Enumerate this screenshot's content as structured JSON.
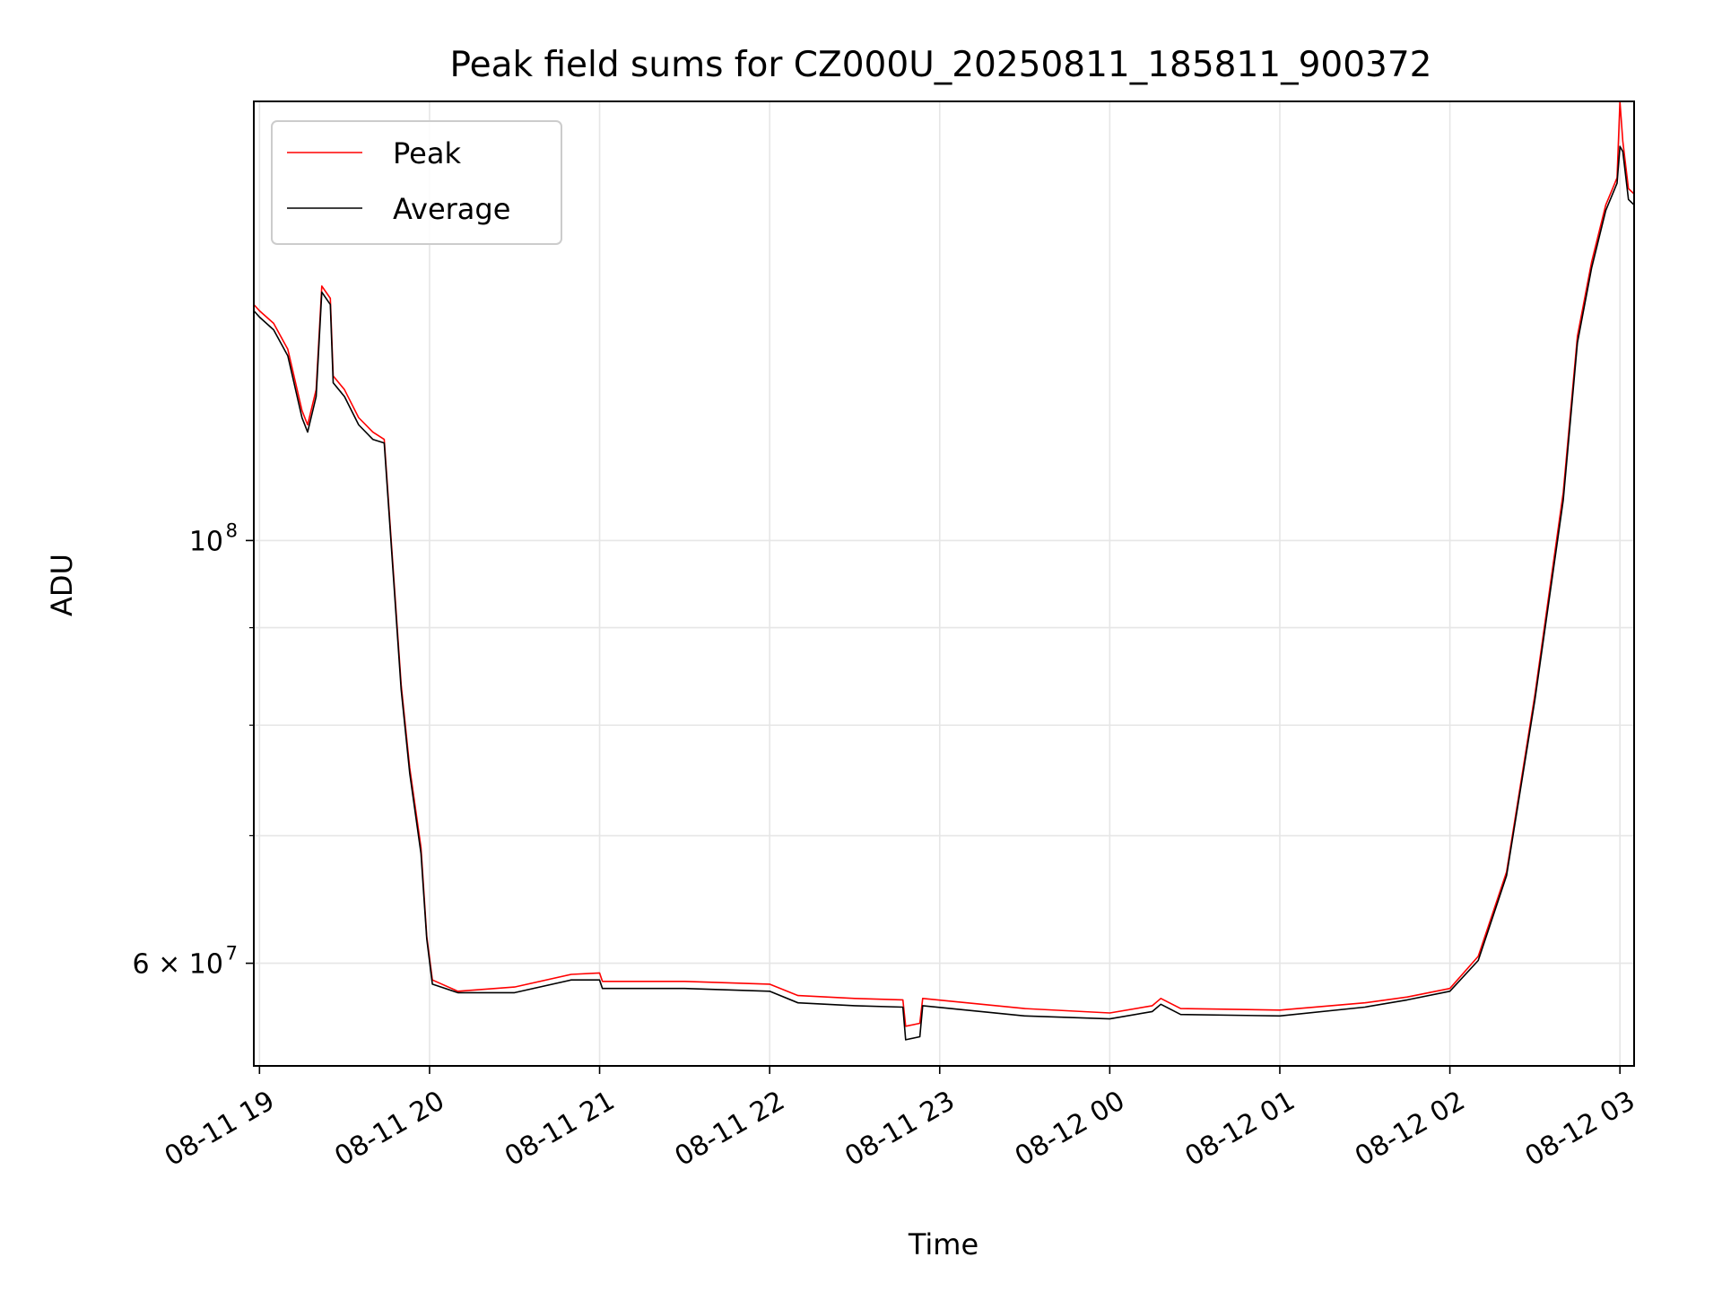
{
  "chart_data": {
    "type": "line",
    "title": "Peak field sums for CZ000U_20250811_185811_900372",
    "xlabel": "Time",
    "ylabel": "ADU",
    "y_scale": "log",
    "ylim": [
      53000000,
      170000000
    ],
    "xlim": [
      "2025-08-11 18:58",
      "2025-08-12 03:05"
    ],
    "grid": true,
    "legend": "upper left",
    "x_ticks": [
      {
        "t": "2025-08-11 19:00",
        "label": "08-11 19"
      },
      {
        "t": "2025-08-11 20:00",
        "label": "08-11 20"
      },
      {
        "t": "2025-08-11 21:00",
        "label": "08-11 21"
      },
      {
        "t": "2025-08-11 22:00",
        "label": "08-11 22"
      },
      {
        "t": "2025-08-11 23:00",
        "label": "08-11 23"
      },
      {
        "t": "2025-08-12 00:00",
        "label": "08-12 00"
      },
      {
        "t": "2025-08-12 01:00",
        "label": "08-12 01"
      },
      {
        "t": "2025-08-12 02:00",
        "label": "08-12 02"
      },
      {
        "t": "2025-08-12 03:00",
        "label": "08-12 03"
      }
    ],
    "y_ticks": [
      {
        "value": 100000000,
        "base": "10",
        "exp": "8"
      },
      {
        "value": 60000000,
        "base": "6 × 10",
        "exp": "7"
      }
    ],
    "y_minor_ticks": [
      70000000,
      80000000,
      90000000
    ],
    "series": [
      {
        "name": "Peak",
        "color": "#ff0000",
        "points": [
          [
            "2025-08-11 18:58",
            133000000
          ],
          [
            "2025-08-11 19:00",
            132000000
          ],
          [
            "2025-08-11 19:05",
            130000000
          ],
          [
            "2025-08-11 19:10",
            126000000
          ],
          [
            "2025-08-11 19:15",
            117000000
          ],
          [
            "2025-08-11 19:17",
            115000000
          ],
          [
            "2025-08-11 19:20",
            120000000
          ],
          [
            "2025-08-11 19:22",
            136000000
          ],
          [
            "2025-08-11 19:25",
            134000000
          ],
          [
            "2025-08-11 19:26",
            122000000
          ],
          [
            "2025-08-11 19:30",
            120000000
          ],
          [
            "2025-08-11 19:35",
            116000000
          ],
          [
            "2025-08-11 19:40",
            114000000
          ],
          [
            "2025-08-11 19:44",
            113000000
          ],
          [
            "2025-08-11 19:50",
            84000000
          ],
          [
            "2025-08-11 19:53",
            76000000
          ],
          [
            "2025-08-11 19:57",
            69000000
          ],
          [
            "2025-08-11 19:59",
            62000000
          ],
          [
            "2025-08-11 20:01",
            58800000
          ],
          [
            "2025-08-11 20:10",
            58000000
          ],
          [
            "2025-08-11 20:30",
            58300000
          ],
          [
            "2025-08-11 20:50",
            59200000
          ],
          [
            "2025-08-11 21:00",
            59300000
          ],
          [
            "2025-08-11 21:01",
            58700000
          ],
          [
            "2025-08-11 21:30",
            58700000
          ],
          [
            "2025-08-11 22:00",
            58500000
          ],
          [
            "2025-08-11 22:10",
            57700000
          ],
          [
            "2025-08-11 22:30",
            57500000
          ],
          [
            "2025-08-11 22:47",
            57400000
          ],
          [
            "2025-08-11 22:48",
            55600000
          ],
          [
            "2025-08-11 22:53",
            55800000
          ],
          [
            "2025-08-11 22:54",
            57500000
          ],
          [
            "2025-08-11 23:30",
            56800000
          ],
          [
            "2025-08-12 00:00",
            56500000
          ],
          [
            "2025-08-12 00:15",
            57000000
          ],
          [
            "2025-08-12 00:18",
            57500000
          ],
          [
            "2025-08-12 00:25",
            56800000
          ],
          [
            "2025-08-12 01:00",
            56700000
          ],
          [
            "2025-08-12 01:30",
            57200000
          ],
          [
            "2025-08-12 01:45",
            57600000
          ],
          [
            "2025-08-12 02:00",
            58200000
          ],
          [
            "2025-08-12 02:10",
            60500000
          ],
          [
            "2025-08-12 02:20",
            67000000
          ],
          [
            "2025-08-12 02:30",
            83000000
          ],
          [
            "2025-08-12 02:40",
            106000000
          ],
          [
            "2025-08-12 02:45",
            128000000
          ],
          [
            "2025-08-12 02:50",
            140000000
          ],
          [
            "2025-08-12 02:55",
            150000000
          ],
          [
            "2025-08-12 02:59",
            155000000
          ],
          [
            "2025-08-12 03:00",
            170000000
          ],
          [
            "2025-08-12 03:01",
            162000000
          ],
          [
            "2025-08-12 03:03",
            153000000
          ],
          [
            "2025-08-12 03:05",
            152000000
          ]
        ]
      },
      {
        "name": "Average",
        "color": "#000000",
        "points": [
          [
            "2025-08-11 18:58",
            132000000
          ],
          [
            "2025-08-11 19:00",
            131000000
          ],
          [
            "2025-08-11 19:05",
            129000000
          ],
          [
            "2025-08-11 19:10",
            125000000
          ],
          [
            "2025-08-11 19:15",
            116000000
          ],
          [
            "2025-08-11 19:17",
            114000000
          ],
          [
            "2025-08-11 19:20",
            119000000
          ],
          [
            "2025-08-11 19:22",
            135000000
          ],
          [
            "2025-08-11 19:25",
            133000000
          ],
          [
            "2025-08-11 19:26",
            121000000
          ],
          [
            "2025-08-11 19:30",
            119000000
          ],
          [
            "2025-08-11 19:35",
            115000000
          ],
          [
            "2025-08-11 19:40",
            113000000
          ],
          [
            "2025-08-11 19:44",
            112500000
          ],
          [
            "2025-08-11 19:50",
            83500000
          ],
          [
            "2025-08-11 19:53",
            75500000
          ],
          [
            "2025-08-11 19:57",
            68500000
          ],
          [
            "2025-08-11 19:59",
            61800000
          ],
          [
            "2025-08-11 20:01",
            58500000
          ],
          [
            "2025-08-11 20:10",
            57900000
          ],
          [
            "2025-08-11 20:30",
            57900000
          ],
          [
            "2025-08-11 20:50",
            58800000
          ],
          [
            "2025-08-11 21:00",
            58800000
          ],
          [
            "2025-08-11 21:01",
            58200000
          ],
          [
            "2025-08-11 21:30",
            58200000
          ],
          [
            "2025-08-11 22:00",
            58000000
          ],
          [
            "2025-08-11 22:10",
            57200000
          ],
          [
            "2025-08-11 22:30",
            57000000
          ],
          [
            "2025-08-11 22:47",
            56900000
          ],
          [
            "2025-08-11 22:48",
            54700000
          ],
          [
            "2025-08-11 22:53",
            54900000
          ],
          [
            "2025-08-11 22:54",
            57000000
          ],
          [
            "2025-08-11 23:30",
            56300000
          ],
          [
            "2025-08-12 00:00",
            56100000
          ],
          [
            "2025-08-12 00:15",
            56600000
          ],
          [
            "2025-08-12 00:18",
            57100000
          ],
          [
            "2025-08-12 00:25",
            56400000
          ],
          [
            "2025-08-12 01:00",
            56300000
          ],
          [
            "2025-08-12 01:30",
            56900000
          ],
          [
            "2025-08-12 01:45",
            57400000
          ],
          [
            "2025-08-12 02:00",
            58000000
          ],
          [
            "2025-08-12 02:10",
            60200000
          ],
          [
            "2025-08-12 02:20",
            66700000
          ],
          [
            "2025-08-12 02:30",
            82500000
          ],
          [
            "2025-08-12 02:40",
            105000000
          ],
          [
            "2025-08-12 02:45",
            127000000
          ],
          [
            "2025-08-12 02:50",
            139000000
          ],
          [
            "2025-08-12 02:55",
            149000000
          ],
          [
            "2025-08-12 02:59",
            154000000
          ],
          [
            "2025-08-12 03:00",
            161000000
          ],
          [
            "2025-08-12 03:01",
            160000000
          ],
          [
            "2025-08-12 03:03",
            151000000
          ],
          [
            "2025-08-12 03:05",
            150000000
          ]
        ]
      }
    ]
  }
}
